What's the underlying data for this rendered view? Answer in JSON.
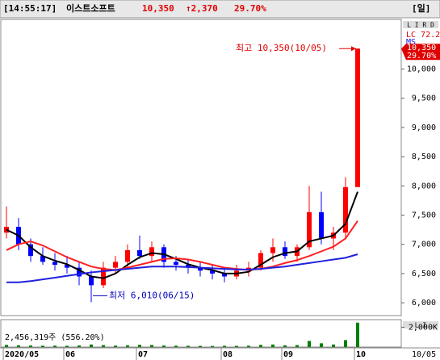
{
  "header": {
    "time": "[14:55:17]",
    "name": "이스트소프트",
    "price": "10,350",
    "change": "↑2,370",
    "rate": "29.70%",
    "period": "[일]"
  },
  "chart_data": {
    "type": "candlestick",
    "categories": [
      "2020/05",
      null,
      null,
      null,
      null,
      "06",
      null,
      null,
      null,
      null,
      null,
      "07",
      null,
      null,
      null,
      null,
      null,
      null,
      "08",
      null,
      null,
      null,
      null,
      "09",
      null,
      null,
      null,
      null,
      null,
      "10"
    ],
    "open": [
      7200,
      7300,
      7000,
      6800,
      6700,
      6650,
      6600,
      6450,
      6300,
      6600,
      6700,
      6900,
      6800,
      6950,
      6700,
      6650,
      6600,
      6550,
      6500,
      6450,
      6550,
      6600,
      6850,
      6950,
      6800,
      6950,
      7550,
      7100,
      7200,
      7980
    ],
    "high": [
      7650,
      7450,
      7100,
      6950,
      6850,
      6800,
      6700,
      6550,
      6700,
      6800,
      7000,
      7150,
      7050,
      7000,
      6800,
      6750,
      6700,
      6650,
      6600,
      6650,
      6700,
      6900,
      7100,
      7050,
      7000,
      8000,
      7900,
      7300,
      8150,
      10350
    ],
    "low": [
      7100,
      6900,
      6700,
      6650,
      6550,
      6500,
      6300,
      6010,
      6250,
      6500,
      6600,
      6750,
      6700,
      6600,
      6550,
      6500,
      6450,
      6400,
      6350,
      6400,
      6450,
      6550,
      6700,
      6750,
      6700,
      6900,
      7000,
      6900,
      7100,
      7980
    ],
    "close": [
      7300,
      7000,
      6800,
      6700,
      6650,
      6600,
      6450,
      6300,
      6600,
      6700,
      6900,
      6800,
      6950,
      6700,
      6650,
      6600,
      6550,
      6500,
      6450,
      6550,
      6600,
      6850,
      6950,
      6800,
      6950,
      7550,
      7100,
      7200,
      7980,
      10350
    ],
    "up_color": "#ff0000",
    "down_color": "#0000ff",
    "moving_averages": [
      {
        "color": "#000000",
        "values": [
          7250,
          7150,
          6950,
          6800,
          6720,
          6660,
          6560,
          6450,
          6420,
          6500,
          6650,
          6780,
          6850,
          6830,
          6750,
          6660,
          6600,
          6560,
          6500,
          6500,
          6530,
          6650,
          6780,
          6850,
          6880,
          7050,
          7100,
          7150,
          7350,
          7900
        ]
      },
      {
        "color": "#ff2020",
        "values": [
          6900,
          7000,
          7050,
          6980,
          6880,
          6780,
          6700,
          6620,
          6580,
          6560,
          6600,
          6650,
          6700,
          6750,
          6760,
          6740,
          6700,
          6650,
          6600,
          6580,
          6560,
          6580,
          6620,
          6680,
          6730,
          6800,
          6880,
          6960,
          7100,
          7400
        ]
      },
      {
        "color": "#2020e0",
        "values": [
          6350,
          6350,
          6370,
          6400,
          6430,
          6460,
          6490,
          6520,
          6540,
          6560,
          6580,
          6600,
          6620,
          6620,
          6620,
          6610,
          6600,
          6590,
          6580,
          6570,
          6570,
          6580,
          6600,
          6620,
          6650,
          6680,
          6710,
          6740,
          6770,
          6830
        ]
      }
    ],
    "ylim": [
      5780,
      10850
    ],
    "yticks": [
      {
        "value": 6000,
        "label": "6,000"
      },
      {
        "value": 6500,
        "label": "6,500"
      },
      {
        "value": 7000,
        "label": "7,000"
      },
      {
        "value": 7500,
        "label": "7,500"
      },
      {
        "value": 8000,
        "label": "8,000"
      },
      {
        "value": 8500,
        "label": "8,500"
      },
      {
        "value": 9000,
        "label": "9,000"
      },
      {
        "value": 9500,
        "label": "9,500"
      },
      {
        "value": 10000,
        "label": "10,000"
      }
    ],
    "annotations": {
      "high": "최고 10,350(10/05)",
      "low": "최저 6,010(06/15)"
    },
    "right_labels": {
      "box": "L I R D",
      "lc": "LC 72.2",
      "ms": "MS",
      "price": "10,350",
      "rate": "29.70%"
    },
    "volume": {
      "values": [
        220,
        180,
        160,
        140,
        150,
        130,
        170,
        260,
        200,
        150,
        180,
        230,
        210,
        160,
        140,
        130,
        120,
        110,
        130,
        120,
        140,
        220,
        260,
        180,
        200,
        620,
        380,
        260,
        700,
        2456.319
      ],
      "ylim": [
        0,
        2600
      ],
      "yticks": [
        {
          "value": 2000,
          "label": "2,000K"
        }
      ],
      "label": "2,456,319주 (556.20%)",
      "color": "#008000",
      "box": "L I"
    },
    "last_date": "10/05"
  }
}
